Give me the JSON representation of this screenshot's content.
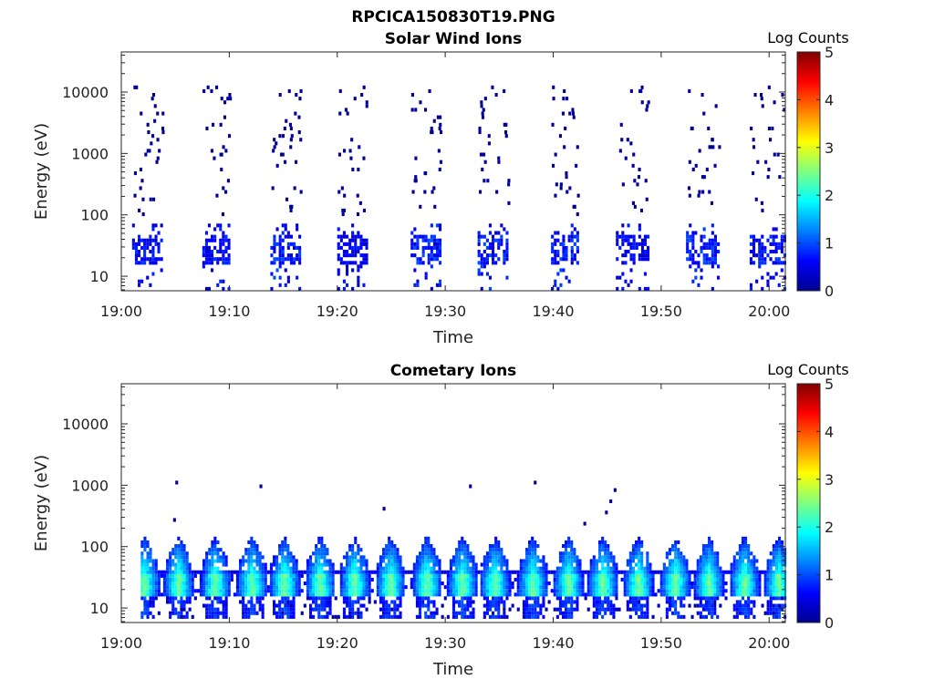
{
  "figure_title": "RPCICA150830T19.PNG",
  "colors": {
    "colormap": [
      "#00008f",
      "#0000ff",
      "#0080ff",
      "#00ffff",
      "#80ff80",
      "#ffff00",
      "#ff8000",
      "#ff0000",
      "#800000"
    ]
  },
  "chart_data": [
    {
      "type": "heatmap",
      "title": "Solar Wind Ions",
      "xlabel": "Time",
      "ylabel": "Energy (eV)",
      "x_ticks": [
        "19:00",
        "19:10",
        "19:20",
        "19:30",
        "19:40",
        "19:50",
        "20:00"
      ],
      "x_tick_minutes": [
        0,
        10,
        20,
        30,
        40,
        50,
        60
      ],
      "xlim_minutes": [
        0,
        61.5
      ],
      "y_scale": "log",
      "y_ticks": [
        "10",
        "100",
        "1000",
        "10000"
      ],
      "y_tick_values": [
        10,
        100,
        1000,
        10000
      ],
      "ylim": [
        5.8,
        45000
      ],
      "colorbar": {
        "label": "Log Counts",
        "range": [
          0,
          5
        ],
        "ticks": [
          "0",
          "1",
          "2",
          "3",
          "4",
          "5"
        ]
      },
      "bursts": [
        {
          "start_min": 1.0,
          "end_min": 3.8,
          "core_log": 0.7,
          "scatter_points": 32
        },
        {
          "start_min": 7.5,
          "end_min": 10.0,
          "core_log": 0.7,
          "scatter_points": 26
        },
        {
          "start_min": 13.8,
          "end_min": 16.6,
          "core_log": 0.8,
          "scatter_points": 34
        },
        {
          "start_min": 20.0,
          "end_min": 22.8,
          "core_log": 0.6,
          "scatter_points": 28
        },
        {
          "start_min": 26.8,
          "end_min": 29.5,
          "core_log": 0.8,
          "scatter_points": 30
        },
        {
          "start_min": 33.0,
          "end_min": 35.8,
          "core_log": 0.8,
          "scatter_points": 30
        },
        {
          "start_min": 39.8,
          "end_min": 42.3,
          "core_log": 0.8,
          "scatter_points": 30
        },
        {
          "start_min": 45.8,
          "end_min": 48.8,
          "core_log": 0.6,
          "scatter_points": 26
        },
        {
          "start_min": 52.3,
          "end_min": 55.3,
          "core_log": 0.8,
          "scatter_points": 28
        },
        {
          "start_min": 58.2,
          "end_min": 61.4,
          "core_log": 0.7,
          "scatter_points": 26
        }
      ]
    },
    {
      "type": "heatmap",
      "title": "Cometary Ions",
      "xlabel": "Time",
      "ylabel": "Energy (eV)",
      "x_ticks": [
        "19:00",
        "19:10",
        "19:20",
        "19:30",
        "19:40",
        "19:50",
        "20:00"
      ],
      "x_tick_minutes": [
        0,
        10,
        20,
        30,
        40,
        50,
        60
      ],
      "xlim_minutes": [
        0,
        61.5
      ],
      "y_scale": "log",
      "y_ticks": [
        "10",
        "100",
        "1000",
        "10000"
      ],
      "y_tick_values": [
        10,
        100,
        1000,
        10000
      ],
      "ylim": [
        5.8,
        45000
      ],
      "colorbar": {
        "label": "Log Counts",
        "range": [
          0,
          5
        ],
        "ticks": [
          "0",
          "1",
          "2",
          "3",
          "4",
          "5"
        ]
      },
      "band_energy_eV": [
        7,
        150
      ],
      "peak_log": 2.1,
      "burst_centers_min": [
        2.0,
        5.2,
        8.6,
        12.0,
        15.0,
        18.3,
        21.5,
        24.8,
        28.2,
        31.5,
        34.5,
        38.0,
        41.3,
        44.5,
        47.8,
        51.2,
        54.3,
        57.6,
        60.8
      ],
      "isolated_points": [
        {
          "t_min": 5.0,
          "energy_eV": 1150
        },
        {
          "t_min": 4.8,
          "energy_eV": 290
        },
        {
          "t_min": 12.8,
          "energy_eV": 900
        },
        {
          "t_min": 24.2,
          "energy_eV": 420
        },
        {
          "t_min": 32.2,
          "energy_eV": 900
        },
        {
          "t_min": 38.2,
          "energy_eV": 1150
        },
        {
          "t_min": 42.8,
          "energy_eV": 230
        },
        {
          "t_min": 44.8,
          "energy_eV": 380
        },
        {
          "t_min": 45.2,
          "energy_eV": 560
        },
        {
          "t_min": 45.6,
          "energy_eV": 820
        }
      ]
    }
  ]
}
